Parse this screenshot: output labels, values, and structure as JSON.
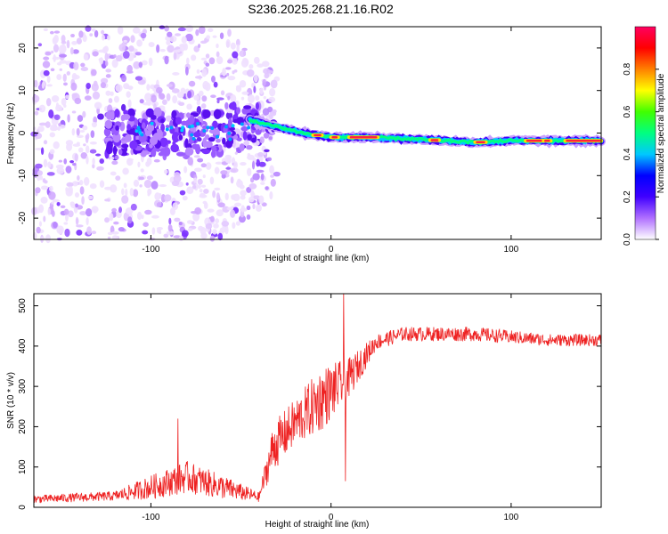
{
  "title": "S236.2025.268.21.16.R02",
  "chart_data": [
    {
      "type": "heatmap",
      "name": "spectrogram",
      "xlabel": "Height of straight line (km)",
      "ylabel": "Frequency (Hz)",
      "xlim": [
        -165,
        150
      ],
      "ylim": [
        -25,
        25
      ],
      "xticks": [
        -100,
        0,
        100
      ],
      "yticks": [
        -20,
        -10,
        0,
        10,
        20
      ],
      "xtick_labels": [
        "-100",
        "0",
        "100"
      ],
      "ytick_labels": [
        "-20",
        "-10",
        "0",
        "10",
        "20"
      ],
      "colorbar": {
        "label": "Normalized spectral amplitude",
        "range": [
          0,
          1
        ],
        "ticks": [
          0.0,
          0.2,
          0.4,
          0.6,
          0.8
        ],
        "tick_labels": [
          "0.0",
          "0.2",
          "0.4",
          "0.6",
          "0.8"
        ],
        "colormap": [
          "#ffffff",
          "#b070ff",
          "#4000ff",
          "#0000ff",
          "#00c8ff",
          "#00ff80",
          "#40ff00",
          "#ffff00",
          "#ff8000",
          "#ff0000",
          "#ff0060"
        ]
      },
      "ridge": {
        "description_points": [
          {
            "x": -45,
            "y": 3.0
          },
          {
            "x": -30,
            "y": 1.5
          },
          {
            "x": -15,
            "y": 0.0
          },
          {
            "x": 0,
            "y": -1.0
          },
          {
            "x": 20,
            "y": -1.0
          },
          {
            "x": 50,
            "y": -1.5
          },
          {
            "x": 80,
            "y": -2.2
          },
          {
            "x": 100,
            "y": -1.8
          },
          {
            "x": 150,
            "y": -1.8
          }
        ]
      },
      "noise_region_x": [
        -165,
        -40
      ]
    },
    {
      "type": "line",
      "name": "snr",
      "xlabel": "Height of straight line (km)",
      "ylabel": "SNR (10 * v/v)",
      "xlim": [
        -165,
        150
      ],
      "ylim": [
        0,
        530
      ],
      "xticks": [
        -100,
        0,
        100
      ],
      "yticks": [
        0,
        100,
        200,
        300,
        400,
        500
      ],
      "xtick_labels": [
        "-100",
        "0",
        "100"
      ],
      "ytick_labels": [
        "0",
        "100",
        "200",
        "300",
        "400",
        "500"
      ],
      "color": "#ee2222",
      "envelope": [
        {
          "x": -165,
          "mean": 20,
          "spread": 10
        },
        {
          "x": -120,
          "mean": 28,
          "spread": 12
        },
        {
          "x": -100,
          "mean": 50,
          "spread": 30
        },
        {
          "x": -80,
          "mean": 75,
          "spread": 40
        },
        {
          "x": -60,
          "mean": 50,
          "spread": 30
        },
        {
          "x": -40,
          "mean": 25,
          "spread": 12
        },
        {
          "x": -32,
          "mean": 150,
          "spread": 60
        },
        {
          "x": -20,
          "mean": 210,
          "spread": 60
        },
        {
          "x": -5,
          "mean": 270,
          "spread": 80
        },
        {
          "x": 10,
          "mean": 320,
          "spread": 50
        },
        {
          "x": 25,
          "mean": 410,
          "spread": 20
        },
        {
          "x": 40,
          "mean": 430,
          "spread": 18
        },
        {
          "x": 80,
          "mean": 430,
          "spread": 18
        },
        {
          "x": 120,
          "mean": 415,
          "spread": 15
        },
        {
          "x": 150,
          "mean": 415,
          "spread": 15
        }
      ],
      "spikes": [
        {
          "x": -85,
          "y": 220
        },
        {
          "x": 7,
          "y": 530
        },
        {
          "x": 8,
          "y": 65
        }
      ]
    }
  ]
}
